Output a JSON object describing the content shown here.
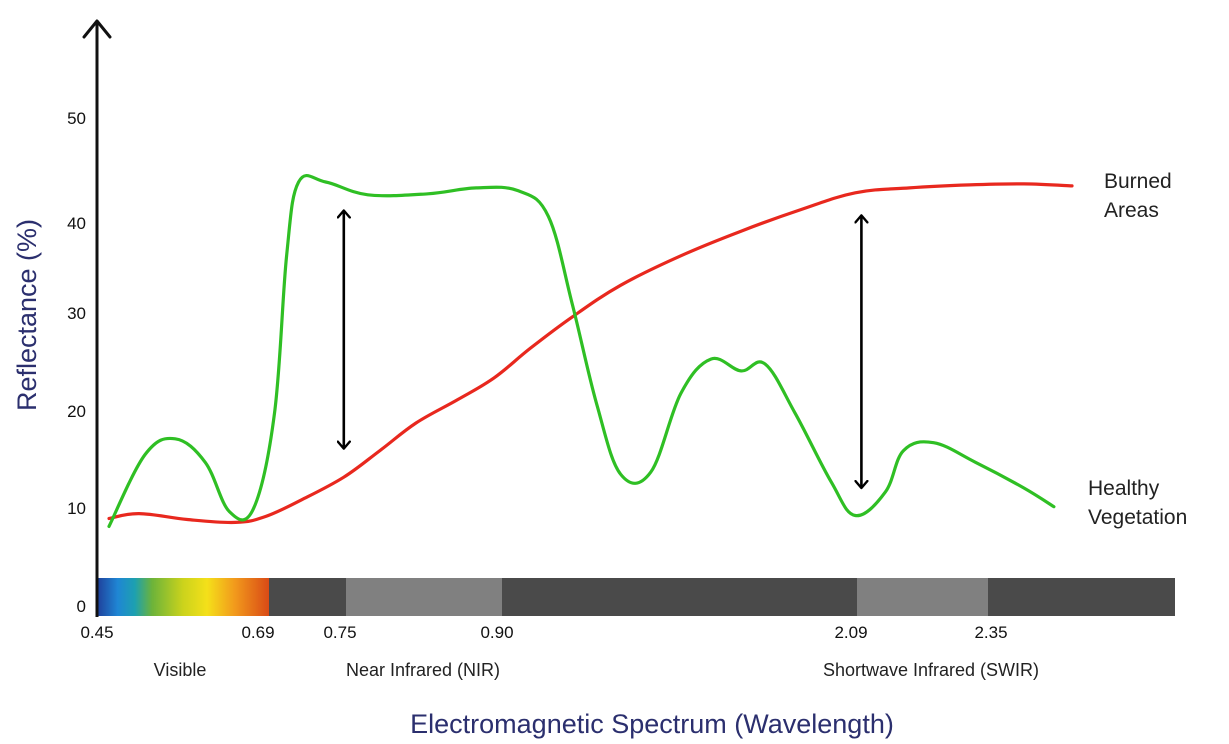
{
  "chart_data": {
    "type": "line",
    "title": "",
    "xlabel": "Electromagnetic Spectrum (Wavelength)",
    "ylabel": "Reflectance (%)",
    "ylim": [
      0,
      50
    ],
    "yticks": [
      "0",
      "10",
      "20",
      "30",
      "40",
      "50"
    ],
    "xticks": [
      "0.45",
      "0.69",
      "0.75",
      "0.90",
      "2.09",
      "2.35"
    ],
    "regions": [
      "Visible",
      "Near Infrared (NIR)",
      "Shortwave Infrared (SWIR)"
    ],
    "series": [
      {
        "name": "Burned Areas",
        "name_lines": [
          "Burned",
          "Areas"
        ],
        "color": "#e8281e",
        "points": [
          [
            0.47,
            9.3
          ],
          [
            0.52,
            9.8
          ],
          [
            0.6,
            9.2
          ],
          [
            0.68,
            8.9
          ],
          [
            0.73,
            9.5
          ],
          [
            0.79,
            11.2
          ],
          [
            0.86,
            13.5
          ],
          [
            0.92,
            16.2
          ],
          [
            0.98,
            19.0
          ],
          [
            1.05,
            21.4
          ],
          [
            1.11,
            23.6
          ],
          [
            1.17,
            26.6
          ],
          [
            1.24,
            29.8
          ],
          [
            1.32,
            33.0
          ],
          [
            1.42,
            36.0
          ],
          [
            1.52,
            38.5
          ],
          [
            1.62,
            40.7
          ],
          [
            1.71,
            42.4
          ],
          [
            1.8,
            42.9
          ],
          [
            1.9,
            43.2
          ],
          [
            1.99,
            43.3
          ],
          [
            2.07,
            43.1
          ]
        ]
      },
      {
        "name": "Healthy Vegetation",
        "name_lines": [
          "Healthy",
          "Vegetation"
        ],
        "color": "#2fbf24",
        "points": [
          [
            0.47,
            8.5
          ],
          [
            0.53,
            15.8
          ],
          [
            0.58,
            17.4
          ],
          [
            0.63,
            15.0
          ],
          [
            0.67,
            10.0
          ],
          [
            0.71,
            10.3
          ],
          [
            0.745,
            20.0
          ],
          [
            0.765,
            36.0
          ],
          [
            0.785,
            43.5
          ],
          [
            0.83,
            43.5
          ],
          [
            0.9,
            42.2
          ],
          [
            1.0,
            42.3
          ],
          [
            1.08,
            42.9
          ],
          [
            1.15,
            42.6
          ],
          [
            1.2,
            40.0
          ],
          [
            1.24,
            31.0
          ],
          [
            1.28,
            21.0
          ],
          [
            1.32,
            13.8
          ],
          [
            1.37,
            14.0
          ],
          [
            1.42,
            22.0
          ],
          [
            1.47,
            25.5
          ],
          [
            1.52,
            24.3
          ],
          [
            1.56,
            25.0
          ],
          [
            1.61,
            20.0
          ],
          [
            1.67,
            13.0
          ],
          [
            1.71,
            9.6
          ],
          [
            1.76,
            12.0
          ],
          [
            1.79,
            16.2
          ],
          [
            1.84,
            17.0
          ],
          [
            1.91,
            15.0
          ],
          [
            1.99,
            12.4
          ],
          [
            2.04,
            10.5
          ]
        ]
      }
    ],
    "arrows": [
      {
        "x": 0.86,
        "from": 16.5,
        "to": 40.5
      },
      {
        "x": 1.72,
        "from": 12.5,
        "to": 40.0
      }
    ],
    "colors": {
      "spectrum_bar": "#4a4a4a",
      "spectrum_highlight": "#808080",
      "axis": "#111111",
      "axis_title": "#2b2f6e"
    }
  }
}
